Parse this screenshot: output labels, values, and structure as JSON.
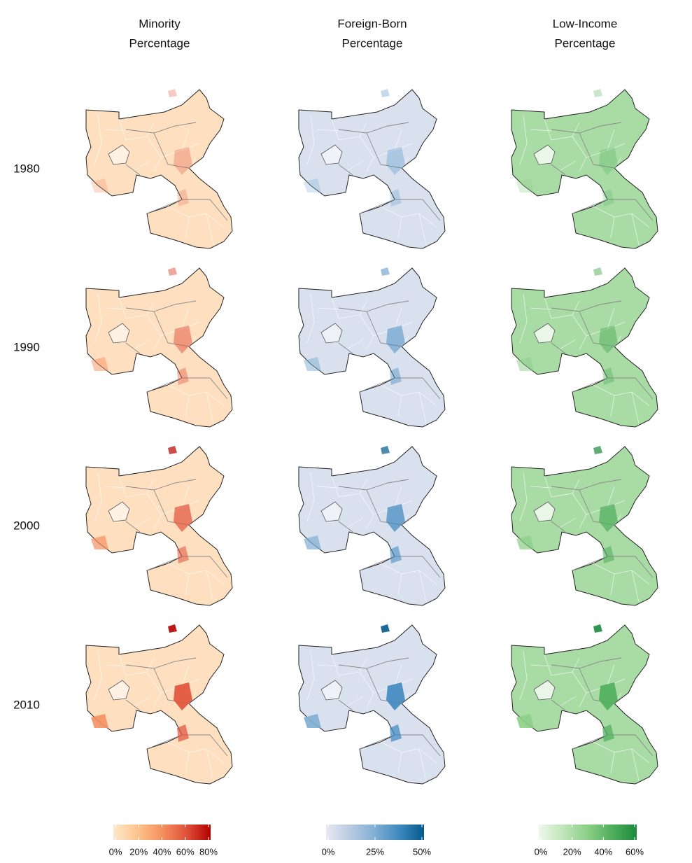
{
  "columns": [
    {
      "title": [
        "Minority",
        "Percentage"
      ]
    },
    {
      "title": [
        "Foreign-Born",
        "Percentage"
      ]
    },
    {
      "title": [
        "Low-Income",
        "Percentage"
      ]
    }
  ],
  "rows": [
    "1980",
    "1990",
    "2000",
    "2010"
  ],
  "legends": [
    {
      "colors": [
        "#fde9cd",
        "#fdc48d",
        "#f5905f",
        "#e0523a",
        "#b30000"
      ],
      "lim": [
        0,
        80
      ],
      "ticks": [
        {
          "value": 0,
          "label": "0%"
        },
        {
          "value": 20,
          "label": "20%"
        },
        {
          "value": 40,
          "label": "40%"
        },
        {
          "value": 60,
          "label": "60%"
        },
        {
          "value": 80,
          "label": "80%"
        }
      ]
    },
    {
      "colors": [
        "#e8e8f2",
        "#b9c9e2",
        "#80aed4",
        "#3f88bf",
        "#045a8d"
      ],
      "lim": [
        0,
        50
      ],
      "ticks": [
        {
          "value": 0,
          "label": "0%"
        },
        {
          "value": 25,
          "label": "25%"
        },
        {
          "value": 50,
          "label": "50%"
        }
      ]
    },
    {
      "colors": [
        "#edf8ea",
        "#bfe5b8",
        "#8ccf87",
        "#4fae5b",
        "#1b8a3c"
      ],
      "lim": [
        0,
        60
      ],
      "ticks": [
        {
          "value": 0,
          "label": "0%"
        },
        {
          "value": 20,
          "label": "20%"
        },
        {
          "value": 40,
          "label": "40%"
        },
        {
          "value": 60,
          "label": "60%"
        }
      ]
    }
  ]
}
